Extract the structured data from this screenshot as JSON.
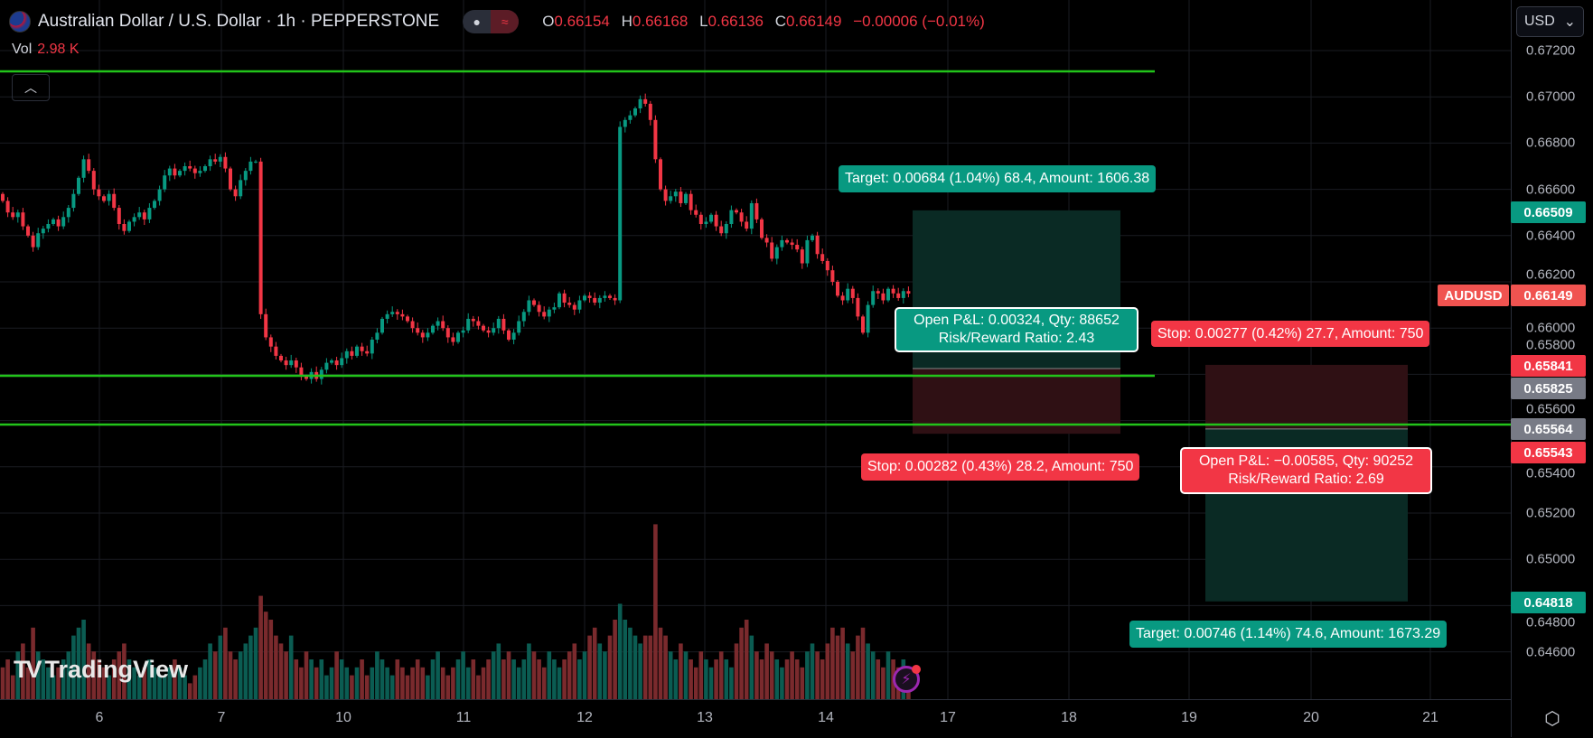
{
  "header": {
    "title": "Australian Dollar / U.S. Dollar · 1h · PEPPERSTONE",
    "flag_icon": "au-us-flag-icon",
    "ohlc": {
      "o_label": "O",
      "o": "0.66154",
      "h_label": "H",
      "h": "0.66168",
      "l_label": "L",
      "l": "0.66136",
      "c_label": "C",
      "c": "0.66149",
      "change": "−0.00006 (−0.01%)"
    },
    "vol_label": "Vol",
    "vol_value": "2.98 K"
  },
  "currency_button": "USD",
  "colors": {
    "up": "#089981",
    "down": "#f23645",
    "hline": "#22c41a",
    "long_profit": "#0a2a24",
    "loss": "#2f1014",
    "gray": "#787b86"
  },
  "price_axis": {
    "ticks": [
      "0.67200",
      "0.67000",
      "0.66800",
      "0.66600",
      "0.66400",
      "0.66200",
      "0.66000",
      "0.65800",
      "0.65600",
      "0.65400",
      "0.65200",
      "0.65000",
      "0.64800",
      "0.64600"
    ],
    "labels": [
      {
        "text": "0.66509",
        "color": "#089981"
      },
      {
        "text": "0.66149",
        "color": "#f05350",
        "symbol": "AUDUSD"
      },
      {
        "text": "0.65841",
        "color": "#f23645"
      },
      {
        "text": "0.65825",
        "color": "#787b86"
      },
      {
        "text": "0.65564",
        "color": "#787b86"
      },
      {
        "text": "0.65543",
        "color": "#f23645"
      },
      {
        "text": "0.64818",
        "color": "#089981"
      }
    ]
  },
  "time_axis": [
    "6",
    "7",
    "10",
    "11",
    "12",
    "13",
    "14",
    "17",
    "18",
    "19",
    "20",
    "21"
  ],
  "positions": {
    "long": {
      "target": "Target: 0.00684 (1.04%) 68.4, Amount: 1606.38",
      "stop": "Stop: 0.00282 (0.43%) 28.2, Amount: 750",
      "pnl": "Open P&L: 0.00324, Qty: 88652",
      "rr": "Risk/Reward Ratio: 2.43"
    },
    "short": {
      "target": "Target: 0.00746 (1.14%) 74.6, Amount: 1673.29",
      "stop": "Stop: 0.00277 (0.42%) 27.7, Amount: 750",
      "pnl": "Open P&L: −0.00585, Qty: 90252",
      "rr": "Risk/Reward Ratio: 2.69"
    }
  },
  "horizontal_lines": [
    0.6711,
    0.65825,
    0.65564
  ],
  "logo": "TradingView",
  "chart_data": {
    "type": "candlestick",
    "symbol": "AUDUSD",
    "interval": "1h",
    "ylim": [
      0.645,
      0.673
    ],
    "closes": [
      0.6655,
      0.665,
      0.6648,
      0.665,
      0.6644,
      0.664,
      0.6635,
      0.6641,
      0.6643,
      0.6645,
      0.6647,
      0.6644,
      0.6648,
      0.6652,
      0.6658,
      0.6665,
      0.6673,
      0.6668,
      0.666,
      0.6657,
      0.6655,
      0.6658,
      0.6652,
      0.6645,
      0.6642,
      0.6646,
      0.6648,
      0.665,
      0.6647,
      0.6652,
      0.6655,
      0.666,
      0.6666,
      0.6669,
      0.6666,
      0.6668,
      0.667,
      0.6669,
      0.6667,
      0.6668,
      0.667,
      0.6673,
      0.6672,
      0.6674,
      0.6669,
      0.666,
      0.6657,
      0.6664,
      0.6668,
      0.6672,
      0.6672,
      0.6606,
      0.6596,
      0.6592,
      0.6588,
      0.6586,
      0.6584,
      0.6586,
      0.6583,
      0.6579,
      0.6578,
      0.6581,
      0.6578,
      0.6582,
      0.6585,
      0.6586,
      0.6584,
      0.6587,
      0.659,
      0.6588,
      0.6592,
      0.659,
      0.6589,
      0.6595,
      0.6598,
      0.6604,
      0.6606,
      0.6607,
      0.6606,
      0.6605,
      0.6603,
      0.66,
      0.6598,
      0.6596,
      0.6598,
      0.6601,
      0.6603,
      0.66,
      0.6596,
      0.6594,
      0.6598,
      0.6599,
      0.6604,
      0.6603,
      0.6601,
      0.6599,
      0.6598,
      0.66,
      0.6604,
      0.6599,
      0.6595,
      0.6598,
      0.6603,
      0.6607,
      0.6612,
      0.661,
      0.6607,
      0.6605,
      0.6608,
      0.6609,
      0.6615,
      0.6611,
      0.661,
      0.6608,
      0.6612,
      0.6614,
      0.6613,
      0.6611,
      0.6613,
      0.6614,
      0.6613,
      0.6612,
      0.6687,
      0.669,
      0.6692,
      0.6695,
      0.6699,
      0.6697,
      0.669,
      0.6673,
      0.666,
      0.6655,
      0.6657,
      0.6659,
      0.6654,
      0.6658,
      0.6651,
      0.6649,
      0.6645,
      0.6646,
      0.6649,
      0.6644,
      0.6641,
      0.6645,
      0.6651,
      0.665,
      0.6646,
      0.6643,
      0.6654,
      0.6647,
      0.6639,
      0.6637,
      0.663,
      0.6635,
      0.6638,
      0.6637,
      0.6636,
      0.6634,
      0.6628,
      0.6638,
      0.664,
      0.6632,
      0.6629,
      0.6625,
      0.662,
      0.6614,
      0.6612,
      0.6617,
      0.6613,
      0.6605,
      0.6598,
      0.661,
      0.6616,
      0.6615,
      0.6612,
      0.6617,
      0.6615,
      0.6613,
      0.6616,
      0.66149
    ],
    "volumes_k": [
      4,
      5,
      3,
      6,
      7,
      4,
      9,
      6,
      5,
      4,
      3,
      4,
      5,
      6,
      8,
      9,
      10,
      7,
      6,
      5,
      4,
      3,
      5,
      6,
      7,
      5,
      4,
      3,
      4,
      5,
      4,
      3,
      3,
      4,
      5,
      4,
      3,
      2,
      3,
      4,
      5,
      7,
      6,
      8,
      9,
      6,
      5,
      6,
      7,
      8,
      9,
      13,
      11,
      10,
      8,
      7,
      6,
      8,
      5,
      4,
      6,
      5,
      4,
      5,
      3,
      4,
      6,
      5,
      4,
      3,
      4,
      5,
      3,
      4,
      6,
      5,
      4,
      3,
      5,
      4,
      3,
      4,
      5,
      4,
      3,
      5,
      6,
      4,
      3,
      4,
      5,
      6,
      4,
      5,
      3,
      4,
      5,
      6,
      7,
      5,
      6,
      5,
      4,
      5,
      7,
      6,
      5,
      4,
      6,
      5,
      4,
      5,
      6,
      7,
      5,
      6,
      8,
      9,
      7,
      6,
      8,
      10,
      12,
      10,
      9,
      8,
      7,
      8,
      8,
      22,
      9,
      8,
      6,
      5,
      7,
      6,
      5,
      4,
      6,
      5,
      4,
      5,
      6,
      5,
      4,
      7,
      9,
      10,
      8,
      6,
      5,
      7,
      6,
      5,
      4,
      5,
      6,
      5,
      4,
      6,
      7,
      6,
      5,
      7,
      9,
      8,
      9,
      7,
      6,
      8,
      9,
      7,
      6,
      5,
      4,
      6,
      5,
      4,
      5,
      2.98
    ]
  }
}
